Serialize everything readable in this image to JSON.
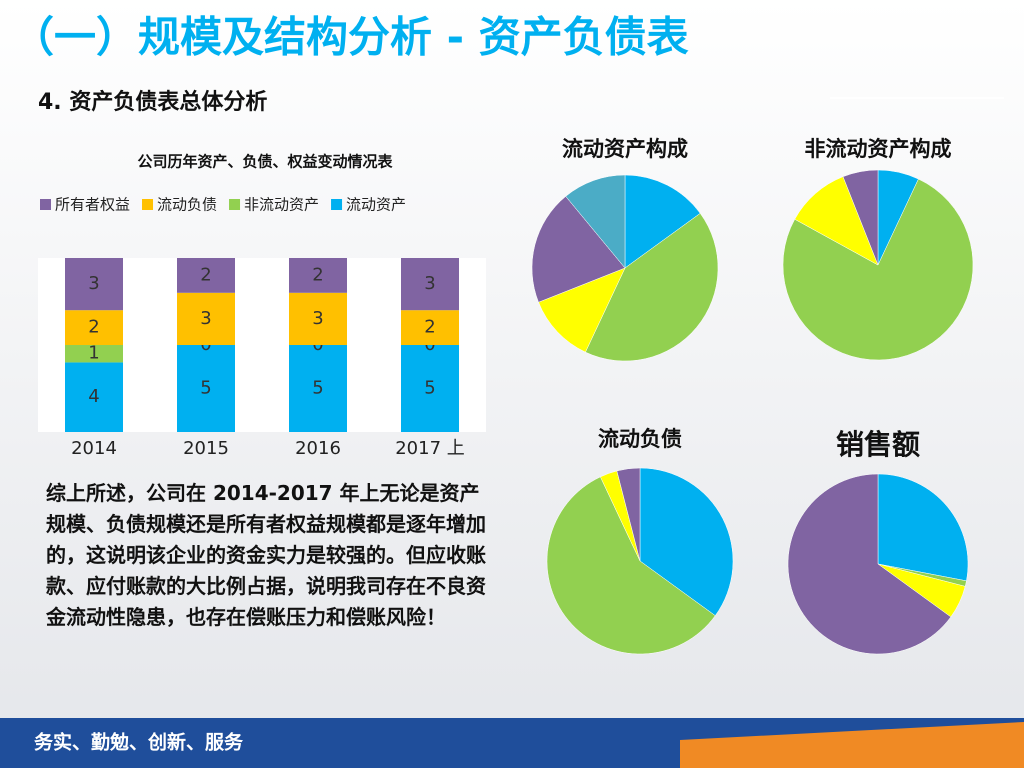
{
  "header": {
    "title": "（一）规模及结构分析 - 资产负债表",
    "subtitle": "4.  资产负债表总体分析"
  },
  "chart_data": [
    {
      "type": "bar",
      "title": "公司历年资产、负债、权益变动情况表",
      "categories": [
        "2014",
        "2015",
        "2016",
        "2017 上"
      ],
      "series": [
        {
          "name": "流动资产",
          "color": "#00b0f0",
          "values": [
            4,
            5,
            5,
            5
          ]
        },
        {
          "name": "非流动资产",
          "color": "#92d050",
          "values": [
            1,
            0,
            0,
            0
          ]
        },
        {
          "name": "流动负债",
          "color": "#ffc000",
          "values": [
            2,
            3,
            3,
            2
          ]
        },
        {
          "name": "所有者权益",
          "color": "#8064a2",
          "values": [
            3,
            2,
            2,
            3
          ]
        }
      ],
      "ylim": [
        0,
        10
      ],
      "stacked": true
    },
    {
      "type": "pie",
      "title": "流动资产构成",
      "values": [
        15,
        42,
        12,
        20,
        11
      ],
      "colors": [
        "#00b0f0",
        "#92d050",
        "#ffff00",
        "#8064a2",
        "#4bacc6"
      ]
    },
    {
      "type": "pie",
      "title": "非流动资产构成",
      "values": [
        7,
        76,
        11,
        6
      ],
      "colors": [
        "#00b0f0",
        "#92d050",
        "#ffff00",
        "#8064a2"
      ]
    },
    {
      "type": "pie",
      "title": "流动负债",
      "values": [
        35,
        58,
        3,
        4
      ],
      "colors": [
        "#00b0f0",
        "#92d050",
        "#ffff00",
        "#8064a2"
      ]
    },
    {
      "type": "pie",
      "title": "销售额",
      "values": [
        28,
        1,
        6,
        65
      ],
      "colors": [
        "#00b0f0",
        "#92d050",
        "#ffff00",
        "#8064a2"
      ]
    }
  ],
  "summary": "综上所述，公司在 2014-2017 年上无论是资产规模、负债规模还是所有者权益规模都是逐年增加的，这说明该企业的资金实力是较强的。但应收账款、应付账款的大比例占据，说明我司存在不良资金流动性隐患，也存在偿账压力和偿账风险！",
  "footer": "务实、勤勉、创新、服务"
}
